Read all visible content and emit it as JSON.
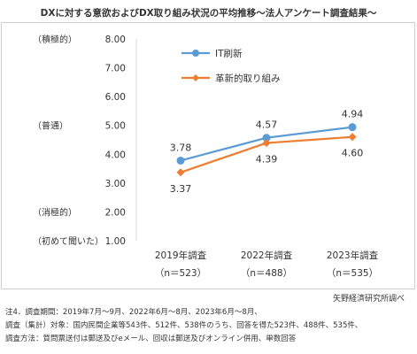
{
  "chart_data": {
    "type": "line",
    "title": "DXに対する意欲およびDX取り組み状況の平均推移～法人アンケート調査結果～",
    "categories": [
      "2019年調査",
      "2022年調査",
      "2023年調査"
    ],
    "sample_sizes": [
      "（n＝523）",
      "（n＝488）",
      "（n＝535）"
    ],
    "series": [
      {
        "name": "IT刷新",
        "color": "#5b9bd5",
        "values": [
          3.78,
          4.57,
          4.94
        ],
        "labels": [
          "3.78",
          "4.57",
          "4.94"
        ]
      },
      {
        "name": "革新的取り組み",
        "color": "#ed7d31",
        "values": [
          3.37,
          4.39,
          4.6
        ],
        "labels": [
          "3.37",
          "4.39",
          "4.60"
        ]
      }
    ],
    "ylim": [
      1.0,
      8.0
    ],
    "yticks": [
      "1.00",
      "2.00",
      "3.00",
      "4.00",
      "5.00",
      "6.00",
      "7.00",
      "8.00"
    ],
    "y_annotations": [
      {
        "value": 8,
        "text": "（積極的）"
      },
      {
        "value": 5,
        "text": "（普通）"
      },
      {
        "value": 2,
        "text": "（消極的）"
      },
      {
        "value": 1,
        "text": "（初めて聞いた）"
      }
    ],
    "grid": false,
    "legend_position": "top-center"
  },
  "source": "矢野経済研究所調べ",
  "notes": [
    "注4．調査期間：2019年7月～9月、2022年6月～8月、2023年6月～8月、",
    "調査（集計）対象：国内民間企業等543件、512件、538件のうち、回答を得た523件、488件、535件、",
    "調査方法：質問票送付は郵送及びeメール、回収は郵送及びオンライン併用、単数回答"
  ]
}
